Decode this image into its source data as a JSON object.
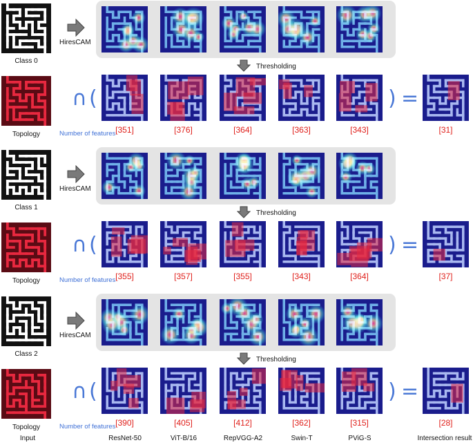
{
  "headers": {
    "input": "Input",
    "models": [
      "ResNet-50",
      "ViT-B/16",
      "RepVGG-A2",
      "Swin-T",
      "PViG-S"
    ],
    "result": "Intersection result"
  },
  "method_label": "HiresCAM",
  "threshold_label": "Thresholding",
  "features_label": "Number of features",
  "topology_label": "Topology",
  "operators": {
    "intersect": "∩",
    "open_paren": "(",
    "close_paren": ")",
    "equals": "="
  },
  "colors": {
    "maze_bg": "#1a1c8c",
    "maze_path": "#a9b8f0",
    "topology_red": "#e8283f",
    "count_red": "#e0201b",
    "accent_blue": "#3d6fd6",
    "panel_gray": "#e4e4e4"
  },
  "rows": [
    {
      "class_label": "Class 0",
      "counts": [
        "[351]",
        "[376]",
        "[364]",
        "[363]",
        "[343]"
      ],
      "result": "[31]"
    },
    {
      "class_label": "Class 1",
      "counts": [
        "[355]",
        "[357]",
        "[355]",
        "[343]",
        "[364]"
      ],
      "result": "[37]"
    },
    {
      "class_label": "Class 2",
      "counts": [
        "[390]",
        "[405]",
        "[412]",
        "[362]",
        "[315]"
      ],
      "result": "[28]"
    }
  ]
}
